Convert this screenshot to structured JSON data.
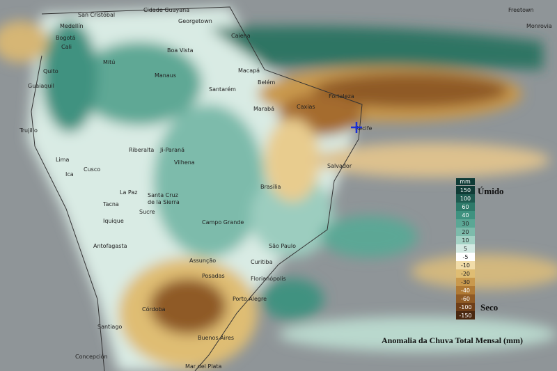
{
  "map": {
    "title": "Anomalia da Chuva Total Mensal (mm)",
    "wet_label": "Úmido",
    "dry_label": "Seco",
    "legend": {
      "unit": "mm",
      "levels": [
        150,
        100,
        60,
        40,
        30,
        20,
        10,
        5,
        -5,
        -10,
        -20,
        -30,
        -40,
        -60,
        -100,
        -150
      ],
      "colors": [
        "#0f3b36",
        "#1e5a50",
        "#2e7a6a",
        "#3f9280",
        "#5ba795",
        "#7dbbab",
        "#a4d2c5",
        "#d3e9e2",
        "#ffffff",
        "#f1dca8",
        "#dfbd73",
        "#c9994d",
        "#b07a35",
        "#8f5a25",
        "#6e3e18",
        "#4a2810"
      ]
    },
    "cities": [
      "Freetown",
      "Monrovia",
      "San Cristóbal",
      "Cidade Guayana",
      "Georgetown",
      "Medellín",
      "Bogotá",
      "Cali",
      "Caiena",
      "Boa Vista",
      "Quito",
      "Mitú",
      "Guaiaquil",
      "Macapá",
      "Manaus",
      "Santarém",
      "Belém",
      "Fortaleza",
      "Caxias",
      "Marabá",
      "Recife",
      "Trujillo",
      "Lima",
      "Ica",
      "Riberalta",
      "Ji-Paraná",
      "Vilhena",
      "Cusco",
      "Salvador",
      "Brasília",
      "La Paz",
      "Santa Cruz",
      "de la Sierra",
      "Tacna",
      "Sucre",
      "Iquique",
      "Campo Grande",
      "Antofagasta",
      "São Paulo",
      "Assunção",
      "Curitiba",
      "Posadas",
      "Florianópolis",
      "Porto Alegre",
      "Córdoba",
      "Santiago",
      "Buenos Aires",
      "Concepción",
      "Mar del Plata"
    ]
  }
}
